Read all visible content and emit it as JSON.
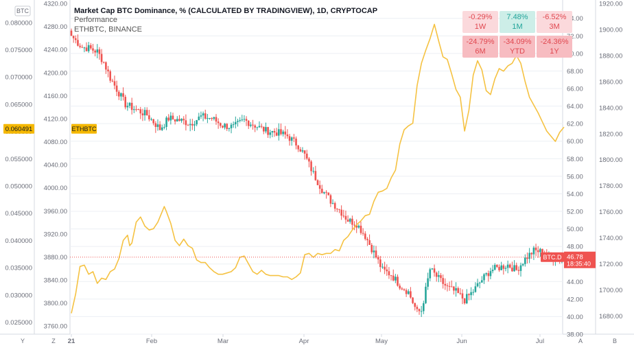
{
  "title": {
    "main": "Market Cap BTC Dominance, % (CALCULATED BY TRADINGVIEW), 1D, CRYPTOCAP",
    "line2": "Performance",
    "line3": "ETHBTC, BINANCE"
  },
  "perf_table": [
    {
      "value": "-0.29%",
      "period": "1W",
      "tone": "neg"
    },
    {
      "value": "7.48%",
      "period": "1M",
      "tone": "pos"
    },
    {
      "value": "-6.52%",
      "period": "3M",
      "tone": "neg"
    },
    {
      "value": "-24.79%",
      "period": "6M",
      "tone": "neg-strong"
    },
    {
      "value": "-34.09%",
      "period": "YTD",
      "tone": "neg-strong"
    },
    {
      "value": "-24.36%",
      "period": "1Y",
      "tone": "neg-strong"
    }
  ],
  "corner_labels": {
    "top_left": "BTC",
    "bottom_left": "Y",
    "z": "Z",
    "a": "A",
    "b": "B"
  },
  "badges": {
    "ethbtc_value": "0.060491",
    "ethbtc_label": "ETHBTC",
    "btcd_label": "BTC.D",
    "btcd_value": "46.78",
    "btcd_time": "18:35:40"
  },
  "colors": {
    "up": "#26a69a",
    "down": "#ef5350",
    "line": "#f5c242",
    "badge_orange": "#f5b800",
    "badge_red": "#ef5350",
    "grid": "#eceff4"
  },
  "chart_data": {
    "type": "candlestick+line",
    "x_tick_labels": [
      "21",
      "Feb",
      "Mar",
      "Apr",
      "May",
      "Jun",
      "Jul"
    ],
    "axes": {
      "ethbtc_left": {
        "ticks": [
          "0.080000",
          "0.075000",
          "0.070000",
          "0.065000",
          "0.060000",
          "0.055000",
          "0.050000",
          "0.045000",
          "0.040000",
          "0.035000",
          "0.030000",
          "0.025000"
        ],
        "range": [
          0.0228,
          0.0835
        ]
      },
      "secondary_left": {
        "ticks": [
          "4320.00",
          "4280.00",
          "4240.00",
          "4200.00",
          "4160.00",
          "4120.00",
          "4080.00",
          "4040.00",
          "4000.00",
          "3960.00",
          "3920.00",
          "3880.00",
          "3840.00",
          "3800.00",
          "3760.00"
        ],
        "range": [
          3746,
          4320
        ]
      },
      "btcd_right": {
        "ticks": [
          "74.00",
          "72.00",
          "70.00",
          "68.00",
          "66.00",
          "64.00",
          "62.00",
          "60.00",
          "58.00",
          "56.00",
          "54.00",
          "52.00",
          "50.00",
          "48.00",
          "46.00",
          "44.00",
          "42.00",
          "40.00",
          "38.00"
        ],
        "range": [
          38,
          75.7
        ]
      },
      "far_right": {
        "ticks": [
          "1920.00",
          "1900.00",
          "1880.00",
          "1860.00",
          "1840.00",
          "1820.00",
          "1800.00",
          "1780.00",
          "1760.00",
          "1740.00",
          "1720.00",
          "1700.00",
          "1680.00"
        ],
        "range": [
          1666,
          1920
        ]
      }
    },
    "btc_dominance_close_anchors": [
      [
        0,
        72.0
      ],
      [
        5,
        70.7
      ],
      [
        8,
        70.6
      ],
      [
        12,
        70.2
      ],
      [
        15,
        69.0
      ],
      [
        18,
        67.2
      ],
      [
        22,
        65.5
      ],
      [
        25,
        64.2
      ],
      [
        30,
        63.6
      ],
      [
        35,
        63.0
      ],
      [
        38,
        62.2
      ],
      [
        41,
        61.4
      ],
      [
        45,
        62.6
      ],
      [
        50,
        62.4
      ],
      [
        55,
        62.0
      ],
      [
        60,
        62.8
      ],
      [
        65,
        62.6
      ],
      [
        70,
        61.8
      ],
      [
        75,
        61.6
      ],
      [
        80,
        62.4
      ],
      [
        85,
        61.8
      ],
      [
        90,
        61.2
      ],
      [
        95,
        61.0
      ],
      [
        100,
        60.6
      ],
      [
        105,
        59.5
      ],
      [
        108,
        58.4
      ],
      [
        112,
        56.3
      ],
      [
        116,
        54.5
      ],
      [
        120,
        53.2
      ],
      [
        124,
        52.2
      ],
      [
        128,
        51.0
      ],
      [
        132,
        50.6
      ],
      [
        136,
        49.2
      ],
      [
        140,
        47.3
      ],
      [
        144,
        45.3
      ],
      [
        148,
        44.8
      ],
      [
        152,
        43.6
      ],
      [
        156,
        42.8
      ],
      [
        160,
        40.5
      ],
      [
        162,
        40.7
      ],
      [
        166,
        45.4
      ],
      [
        170,
        44.3
      ],
      [
        174,
        43.3
      ],
      [
        178,
        42.8
      ],
      [
        182,
        41.9
      ],
      [
        186,
        42.9
      ],
      [
        190,
        44.2
      ],
      [
        194,
        45.3
      ],
      [
        198,
        45.6
      ],
      [
        202,
        45.9
      ],
      [
        206,
        45.3
      ],
      [
        210,
        46.6
      ],
      [
        214,
        47.5
      ],
      [
        218,
        47.4
      ],
      [
        222,
        46.7
      ],
      [
        226,
        46.6
      ],
      [
        228,
        46.78
      ]
    ],
    "yellow_line_far_right_axis": [
      [
        0,
        1682
      ],
      [
        2,
        1697
      ],
      [
        4,
        1718
      ],
      [
        6,
        1719
      ],
      [
        8,
        1712
      ],
      [
        10,
        1714
      ],
      [
        12,
        1705
      ],
      [
        14,
        1709
      ],
      [
        16,
        1708
      ],
      [
        18,
        1714
      ],
      [
        20,
        1716
      ],
      [
        22,
        1724
      ],
      [
        24,
        1738
      ],
      [
        26,
        1742
      ],
      [
        27,
        1734
      ],
      [
        28,
        1736
      ],
      [
        30,
        1752
      ],
      [
        32,
        1756
      ],
      [
        34,
        1749
      ],
      [
        36,
        1746
      ],
      [
        38,
        1747
      ],
      [
        40,
        1752
      ],
      [
        42,
        1760
      ],
      [
        43,
        1764
      ],
      [
        44,
        1760
      ],
      [
        46,
        1751
      ],
      [
        48,
        1738
      ],
      [
        50,
        1734
      ],
      [
        52,
        1739
      ],
      [
        54,
        1734
      ],
      [
        56,
        1732
      ],
      [
        58,
        1723
      ],
      [
        60,
        1721
      ],
      [
        62,
        1721
      ],
      [
        64,
        1717
      ],
      [
        66,
        1714
      ],
      [
        68,
        1712
      ],
      [
        70,
        1712
      ],
      [
        72,
        1713
      ],
      [
        74,
        1714
      ],
      [
        76,
        1717
      ],
      [
        78,
        1725
      ],
      [
        80,
        1726
      ],
      [
        82,
        1720
      ],
      [
        84,
        1714
      ],
      [
        86,
        1712
      ],
      [
        88,
        1715
      ],
      [
        90,
        1712
      ],
      [
        92,
        1711
      ],
      [
        94,
        1711
      ],
      [
        96,
        1711
      ],
      [
        98,
        1710
      ],
      [
        100,
        1710
      ],
      [
        102,
        1708
      ],
      [
        104,
        1710
      ],
      [
        106,
        1713
      ],
      [
        108,
        1727
      ],
      [
        110,
        1728
      ],
      [
        112,
        1725
      ],
      [
        114,
        1728
      ],
      [
        116,
        1727
      ],
      [
        118,
        1728
      ],
      [
        120,
        1728
      ],
      [
        122,
        1731
      ],
      [
        124,
        1730
      ],
      [
        126,
        1738
      ],
      [
        128,
        1741
      ],
      [
        130,
        1746
      ],
      [
        132,
        1750
      ],
      [
        134,
        1753
      ],
      [
        136,
        1757
      ],
      [
        138,
        1758
      ],
      [
        140,
        1768
      ],
      [
        142,
        1775
      ],
      [
        144,
        1776
      ],
      [
        146,
        1778
      ],
      [
        148,
        1786
      ],
      [
        150,
        1792
      ],
      [
        152,
        1812
      ],
      [
        154,
        1823
      ],
      [
        156,
        1826
      ],
      [
        158,
        1828
      ],
      [
        160,
        1857
      ],
      [
        162,
        1874
      ],
      [
        164,
        1884
      ],
      [
        166,
        1893
      ],
      [
        168,
        1904
      ],
      [
        170,
        1891
      ],
      [
        172,
        1879
      ],
      [
        174,
        1877
      ],
      [
        176,
        1866
      ],
      [
        178,
        1854
      ],
      [
        180,
        1848
      ],
      [
        182,
        1822
      ],
      [
        184,
        1838
      ],
      [
        186,
        1865
      ],
      [
        188,
        1876
      ],
      [
        190,
        1869
      ],
      [
        192,
        1853
      ],
      [
        194,
        1850
      ],
      [
        196,
        1862
      ],
      [
        198,
        1870
      ],
      [
        200,
        1868
      ],
      [
        202,
        1872
      ],
      [
        204,
        1874
      ],
      [
        206,
        1880
      ],
      [
        208,
        1874
      ],
      [
        210,
        1860
      ],
      [
        212,
        1848
      ],
      [
        214,
        1842
      ],
      [
        216,
        1836
      ],
      [
        218,
        1829
      ],
      [
        220,
        1822
      ],
      [
        222,
        1818
      ],
      [
        224,
        1814
      ],
      [
        226,
        1821
      ],
      [
        228,
        1825
      ]
    ]
  }
}
